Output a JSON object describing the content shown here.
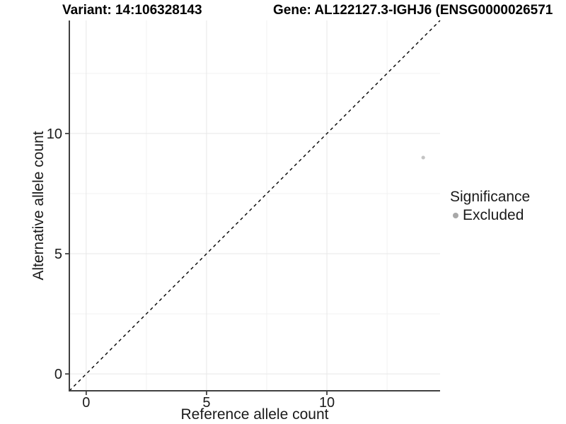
{
  "chart_data": {
    "type": "scatter",
    "titles": {
      "left": "Variant: 14:106328143",
      "right": "Gene: AL122127.3-IGHJ6 (ENSG0000026571"
    },
    "xlabel": "Reference allele count",
    "ylabel": "Alternative allele count",
    "xlim": [
      -0.7,
      14.7
    ],
    "ylim": [
      -0.7,
      14.7
    ],
    "x_ticks": [
      0,
      5,
      10
    ],
    "y_ticks": [
      0,
      5,
      10
    ],
    "x_minor_ticks": [
      2.5,
      7.5,
      12.5
    ],
    "y_minor_ticks": [
      2.5,
      7.5,
      12.5
    ],
    "grid": true,
    "legend_position": "right",
    "points": [
      {
        "x": 14,
        "y": 9,
        "series": "Excluded"
      }
    ],
    "reference_line": {
      "kind": "identity",
      "style": "dashed",
      "from": -0.7,
      "to": 14.7
    },
    "legend": {
      "title": "Significance",
      "items": [
        {
          "label": "Excluded",
          "color": "#a8a8a8"
        }
      ]
    },
    "colors": {
      "point": "#c4c4c4",
      "legend_key": "#a8a8a8",
      "axis": "#404040",
      "tick_text": "#1a1a1a",
      "grid_major": "#e7e7e7",
      "grid_minor": "#f2f2f2",
      "dashed_line": "#000000",
      "background": "#ffffff"
    }
  }
}
